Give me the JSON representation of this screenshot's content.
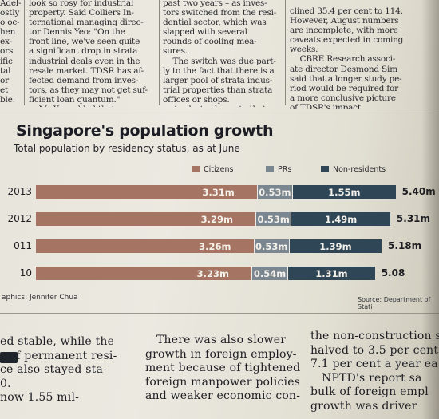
{
  "article_top": {
    "col1": [
      "Adel-",
      "ostly",
      "o oc-",
      "hen",
      "ex-",
      "ors",
      "ific",
      "tal",
      "or",
      "et",
      "ble."
    ],
    "col2": [
      "look so rosy for industrial",
      "property. Said Colliers In-",
      "ternational managing direc-",
      "tor Dennis Yeo: \"On the",
      "front line, we've seen quite",
      "a significant drop in strata",
      "industrial deals even in the",
      "resale market. TDSR has af-",
      "fected demand from inves-",
      "tors, as they may not get suf-",
      "ficient loan quantum.\"",
      "    Mr Yeo added that"
    ],
    "col3": [
      "past two years – as inves-",
      "tors switched from the resi-",
      "dential sector, which was",
      "slapped with several",
      "rounds of cooling mea-",
      "sures.",
      "    The switch was due part-",
      "ly to the fact that there is a",
      "larger pool of strata indus-",
      "trial properties than strata",
      "offices or shops.",
      "    Analysts also note that"
    ],
    "col4": [
      "clined 35.4 per cent to 114.",
      "However, August numbers",
      "are incomplete, with more",
      "caveats expected in coming",
      "weeks.",
      "    CBRE Research associ-",
      "ate director Desmond Sim",
      "said that a longer study pe-",
      "riod would be required for",
      "a more conclusive picture",
      "of TDSR's impact."
    ]
  },
  "chart_data": {
    "type": "bar",
    "stacked": true,
    "orientation": "horizontal",
    "title": "Singapore's population growth",
    "subtitle": "Total population by residency status, as at June",
    "categories": [
      "2013",
      "2012",
      "011",
      "10"
    ],
    "series": [
      {
        "name": "Citizens",
        "color": "#a67462",
        "values": [
          3.31,
          3.29,
          3.26,
          3.23
        ],
        "labels": [
          "3.31m",
          "3.29m",
          "3.26m",
          "3.23m"
        ]
      },
      {
        "name": "PRs",
        "color": "#7a8690",
        "values": [
          0.53,
          0.53,
          0.53,
          0.54
        ],
        "labels": [
          "0.53m",
          "0.53m",
          "0.53m",
          "0.54m"
        ]
      },
      {
        "name": "Non-residents",
        "color": "#2f4657",
        "values": [
          1.55,
          1.49,
          1.39,
          1.31
        ],
        "labels": [
          "1.55m",
          "1.49m",
          "1.39m",
          "1.31m"
        ]
      }
    ],
    "totals": [
      "5.40m",
      "5.31m",
      "5.18m",
      "5.08"
    ],
    "legend_position": "top-right",
    "credit": "aphics: Jennifer Chua",
    "source": "Source: Department of Stati"
  },
  "article_bottom": {
    "col1": [
      "ed stable, while the",
      "r of permanent resi-",
      "ce also stayed sta-",
      "0.",
      "now 1.55 mil-"
    ],
    "col2": [
      "   There was also slower",
      "growth in foreign employ-",
      "ment because of tightened",
      "foreign manpower policies",
      "and weaker economic con-"
    ],
    "col3": [
      "the non-construction se",
      "halved to 3.5 per cent",
      "7.1 per cent a year ea",
      "   NPTD's report sa",
      "bulk of foreign empl",
      "growth was driver"
    ]
  }
}
